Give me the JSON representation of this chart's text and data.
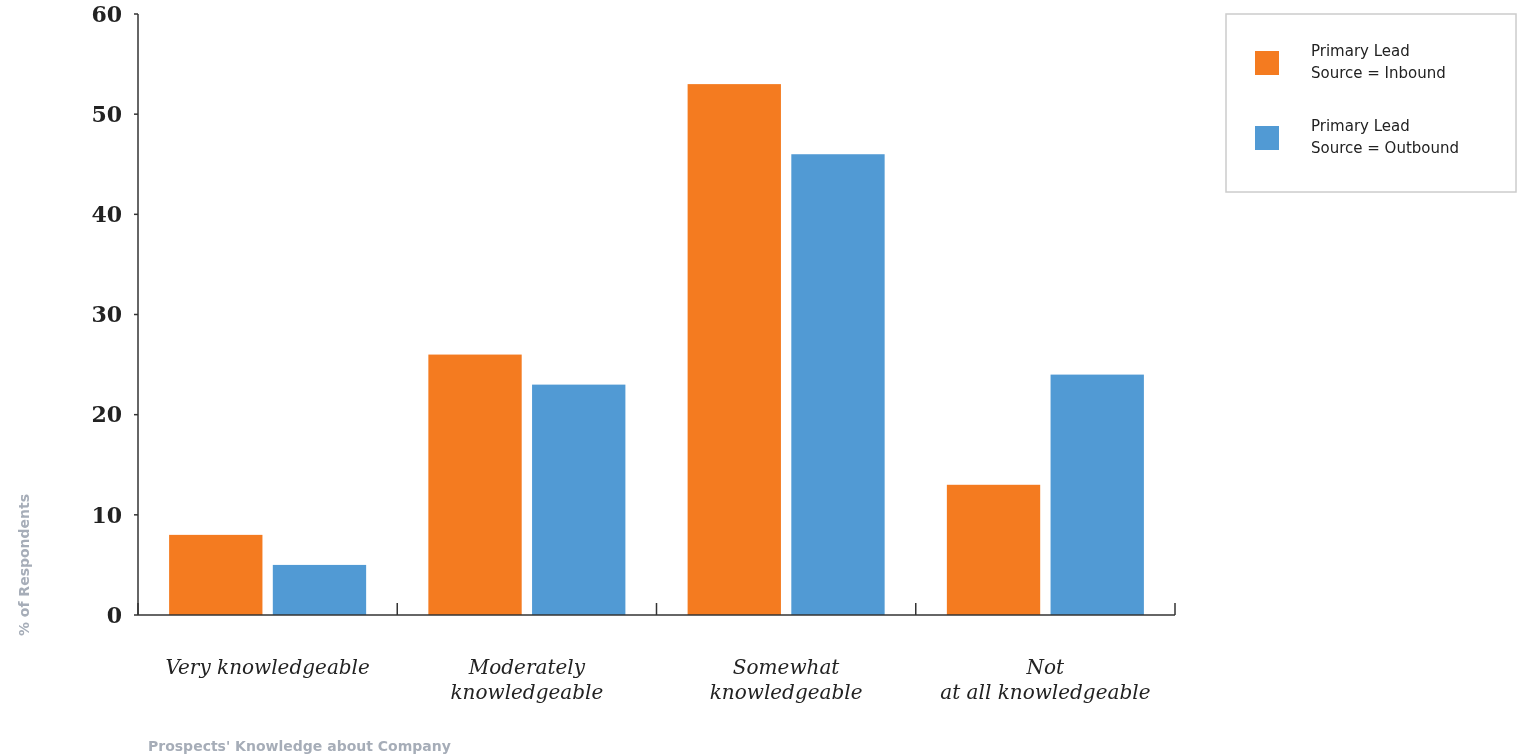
{
  "chart_data": {
    "type": "bar",
    "xlabel": "Prospects' Knowledge about Company",
    "ylabel": "% of Respondents",
    "categories": [
      "Very knowledgeable",
      "Moderately knowledgeable",
      "Somewhat knowledgeable",
      "Not at all knowledgeable"
    ],
    "series": [
      {
        "name": "Primary Lead Source = Inbound",
        "color": "#f47b20",
        "values": [
          8,
          26,
          53,
          13
        ]
      },
      {
        "name": "Primary Lead Source = Outbound",
        "color": "#519ad4",
        "values": [
          5,
          23,
          46,
          24
        ]
      }
    ],
    "ylim": [
      0,
      60
    ],
    "yticks": [
      0,
      10,
      20,
      30,
      40,
      50,
      60
    ],
    "grid": false,
    "legend": "top right"
  }
}
